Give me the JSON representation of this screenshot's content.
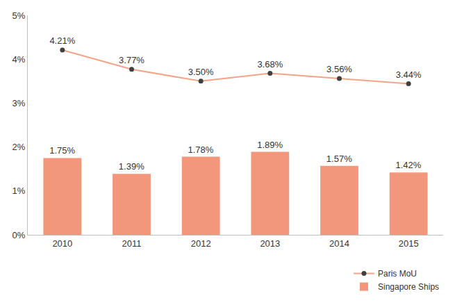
{
  "chart_data": {
    "type": "bar",
    "categories": [
      "2010",
      "2011",
      "2012",
      "2013",
      "2014",
      "2015"
    ],
    "series": [
      {
        "name": "Paris MoU",
        "type": "line",
        "color": "#f4a486",
        "marker": "circle",
        "values": [
          4.21,
          3.77,
          3.5,
          3.68,
          3.56,
          3.44
        ],
        "value_labels": [
          "4.21%",
          "3.77%",
          "3.50%",
          "3.68%",
          "3.56%",
          "3.44%"
        ]
      },
      {
        "name": "Singapore Ships",
        "type": "bar",
        "color": "#f2977b",
        "values": [
          1.75,
          1.39,
          1.78,
          1.89,
          1.57,
          1.42
        ],
        "value_labels": [
          "1.75%",
          "1.39%",
          "1.78%",
          "1.89%",
          "1.57%",
          "1.42%"
        ]
      }
    ],
    "ylim": [
      0,
      5
    ],
    "yticks": [
      {
        "value": 0,
        "label": "0%"
      },
      {
        "value": 1,
        "label": "1%"
      },
      {
        "value": 2,
        "label": "2%"
      },
      {
        "value": 3,
        "label": "3%"
      },
      {
        "value": 4,
        "label": "4%"
      },
      {
        "value": 5,
        "label": "5%"
      }
    ],
    "grid": false,
    "legend": "bottom right",
    "data_labels": true
  }
}
